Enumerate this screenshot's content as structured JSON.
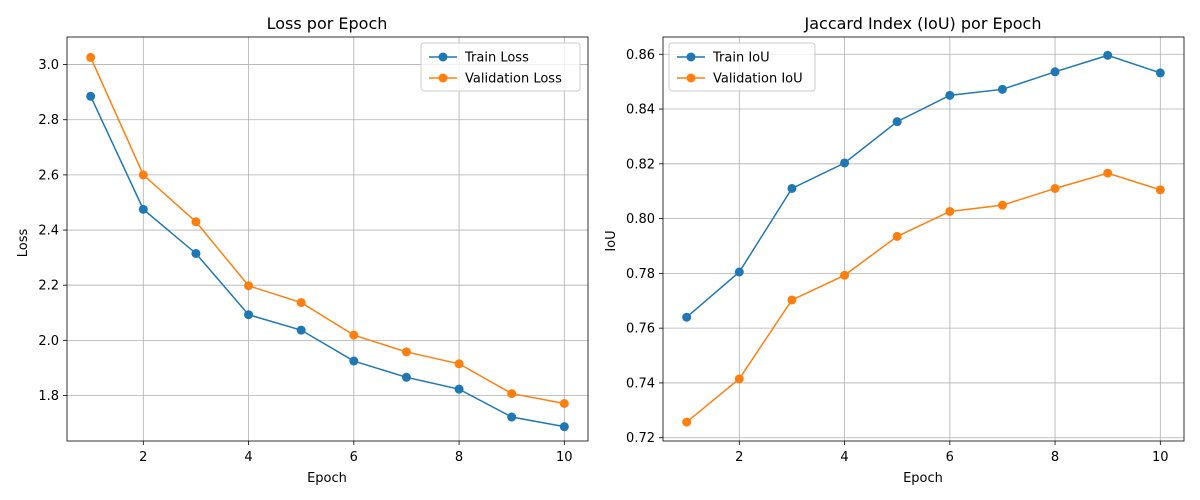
{
  "chart_data": [
    {
      "type": "line",
      "title": "Loss por Epoch",
      "xlabel": "Epoch",
      "ylabel": "Loss",
      "x": [
        1,
        2,
        3,
        4,
        5,
        6,
        7,
        8,
        9,
        10
      ],
      "xlim": [
        0.55,
        10.45
      ],
      "ylim": [
        1.635,
        3.1
      ],
      "xticks": [
        2,
        4,
        6,
        8,
        10
      ],
      "yticks": [
        1.8,
        2.0,
        2.2,
        2.4,
        2.6,
        2.8,
        3.0
      ],
      "ytick_labels": [
        "1.8",
        "2.0",
        "2.2",
        "2.4",
        "2.6",
        "2.8",
        "3.0"
      ],
      "grid": true,
      "legend_position": "top-right",
      "series": [
        {
          "name": "Train Loss",
          "color": "#1f77b4",
          "values": [
            2.885,
            2.475,
            2.315,
            2.093,
            2.037,
            1.925,
            1.866,
            1.823,
            1.722,
            1.687
          ]
        },
        {
          "name": "Validation Loss",
          "color": "#ff7f0e",
          "values": [
            3.026,
            2.6,
            2.43,
            2.198,
            2.137,
            2.019,
            1.958,
            1.915,
            1.807,
            1.771
          ]
        }
      ]
    },
    {
      "type": "line",
      "title": "Jaccard Index (IoU) por Epoch",
      "xlabel": "Epoch",
      "ylabel": "IoU",
      "x": [
        1,
        2,
        3,
        4,
        5,
        6,
        7,
        8,
        9,
        10
      ],
      "xlim": [
        0.55,
        10.45
      ],
      "ylim": [
        0.7188,
        0.8663
      ],
      "xticks": [
        2,
        4,
        6,
        8,
        10
      ],
      "yticks": [
        0.72,
        0.74,
        0.76,
        0.78,
        0.8,
        0.82,
        0.84,
        0.86
      ],
      "ytick_labels": [
        "0.72",
        "0.74",
        "0.76",
        "0.78",
        "0.80",
        "0.82",
        "0.84",
        "0.86"
      ],
      "grid": true,
      "legend_position": "top-left",
      "series": [
        {
          "name": "Train IoU",
          "color": "#1f77b4",
          "values": [
            0.764,
            0.7805,
            0.811,
            0.8203,
            0.8354,
            0.845,
            0.8472,
            0.8536,
            0.8596,
            0.8532
          ]
        },
        {
          "name": "Validation IoU",
          "color": "#ff7f0e",
          "values": [
            0.7257,
            0.7415,
            0.7703,
            0.7793,
            0.7935,
            0.8026,
            0.8049,
            0.811,
            0.8166,
            0.8105
          ]
        }
      ]
    }
  ]
}
